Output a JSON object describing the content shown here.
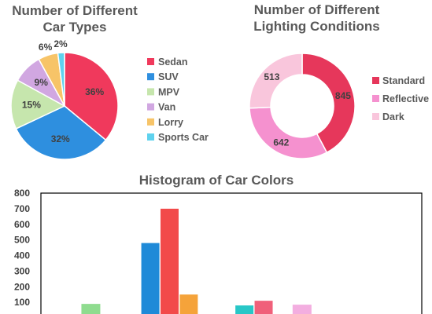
{
  "chart_data": [
    {
      "type": "pie",
      "title": "Number of Different Car Types",
      "title_lines": [
        "Number of Different",
        "Car Types"
      ],
      "unit": "%",
      "slices": [
        {
          "label": "Sedan",
          "value": 36,
          "color": "#f0395c"
        },
        {
          "label": "SUV",
          "value": 32,
          "color": "#2e8fdf"
        },
        {
          "label": "MPV",
          "value": 15,
          "color": "#c6e6ad"
        },
        {
          "label": "Van",
          "value": 9,
          "color": "#d1a7e1"
        },
        {
          "label": "Lorry",
          "value": 6,
          "color": "#f7c468"
        },
        {
          "label": "Sports Car",
          "value": 2,
          "color": "#5fd2ee"
        }
      ],
      "legend_position": "right"
    },
    {
      "type": "pie",
      "variant": "donut",
      "title": "Number of Different Lighting Conditions",
      "title_lines": [
        "Number of Different",
        "Lighting Conditions"
      ],
      "slices": [
        {
          "label": "Standard",
          "value": 845,
          "color": "#e6375b"
        },
        {
          "label": "Reflective",
          "value": 642,
          "color": "#f591cf"
        },
        {
          "label": "Dark",
          "value": 513,
          "color": "#f9c6dc"
        }
      ],
      "legend_position": "right"
    },
    {
      "type": "bar",
      "title": "Histogram of Car Colors",
      "ylim": [
        0,
        800
      ],
      "yticks": [
        100,
        200,
        300,
        400,
        500,
        600,
        700,
        800
      ],
      "grid": false,
      "bars": [
        {
          "value": 90,
          "color": "#8fdc8f"
        },
        {
          "value": 480,
          "color": "#1f8ad8"
        },
        {
          "value": 700,
          "color": "#f24a4a"
        },
        {
          "value": 150,
          "color": "#f5a33a"
        },
        {
          "value": 80,
          "color": "#28c7c7"
        },
        {
          "value": 110,
          "color": "#f0607a"
        },
        {
          "value": 85,
          "color": "#f3aee0"
        }
      ]
    }
  ]
}
